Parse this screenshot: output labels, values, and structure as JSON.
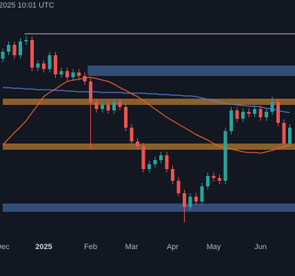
{
  "chart_data": {
    "type": "candlestick",
    "header_text": "2025 10:01 UTC",
    "categories": [
      "Dec",
      null,
      null,
      null,
      null,
      null,
      null,
      "2025",
      null,
      null,
      null,
      null,
      null,
      null,
      null,
      "Feb",
      null,
      null,
      null,
      null,
      null,
      null,
      "Mar",
      null,
      null,
      null,
      null,
      null,
      null,
      "Apr",
      null,
      null,
      null,
      null,
      null,
      null,
      "May",
      null,
      null,
      null,
      null,
      null,
      null,
      null,
      "Jun",
      null,
      null,
      null,
      null,
      null
    ],
    "open": [
      255,
      265,
      275,
      260,
      280,
      282,
      242,
      248,
      240,
      260,
      232,
      237,
      228,
      235,
      230,
      222,
      192,
      182,
      188,
      180,
      192,
      185,
      155,
      135,
      128,
      95,
      102,
      108,
      115,
      95,
      78,
      60,
      40,
      55,
      48,
      70,
      85,
      82,
      78,
      150,
      180,
      168,
      178,
      175,
      182,
      170,
      178,
      192,
      162,
      132
    ],
    "high": [
      270,
      280,
      280,
      285,
      288,
      287,
      253,
      253,
      265,
      265,
      242,
      242,
      240,
      240,
      235,
      227,
      197,
      193,
      193,
      197,
      197,
      190,
      160,
      140,
      133,
      107,
      113,
      120,
      120,
      100,
      83,
      65,
      60,
      60,
      75,
      90,
      90,
      87,
      155,
      185,
      185,
      183,
      183,
      187,
      187,
      183,
      200,
      197,
      167,
      160
    ],
    "low": [
      250,
      260,
      255,
      255,
      275,
      237,
      237,
      235,
      235,
      227,
      227,
      223,
      223,
      225,
      217,
      125,
      177,
      177,
      175,
      175,
      180,
      150,
      130,
      123,
      90,
      90,
      97,
      103,
      90,
      73,
      55,
      18,
      35,
      43,
      43,
      65,
      77,
      73,
      73,
      145,
      163,
      163,
      170,
      170,
      165,
      165,
      173,
      157,
      127,
      127
    ],
    "close": [
      265,
      275,
      260,
      280,
      282,
      242,
      248,
      240,
      260,
      232,
      237,
      228,
      235,
      230,
      222,
      192,
      182,
      188,
      180,
      192,
      185,
      155,
      135,
      128,
      95,
      102,
      108,
      115,
      95,
      78,
      60,
      40,
      55,
      48,
      70,
      85,
      82,
      78,
      150,
      180,
      168,
      178,
      175,
      182,
      170,
      178,
      192,
      162,
      132,
      155
    ],
    "up_color": "#26a69a",
    "down_color": "#ef5350",
    "series": [
      {
        "color": "#5b7fd6",
        "values": [
          213,
          213,
          212,
          212,
          211,
          211,
          210,
          210,
          210,
          209,
          209,
          208,
          208,
          207,
          207,
          207,
          207,
          206,
          206,
          206,
          206,
          205,
          205,
          205,
          205,
          204,
          204,
          203,
          203,
          202,
          202,
          201,
          201,
          200,
          198,
          196,
          194,
          192,
          190,
          189,
          188,
          187,
          186,
          186,
          185,
          183,
          182,
          180,
          178,
          177
        ]
      },
      {
        "color": "#f0622d",
        "values": [
          130,
          139,
          148,
          156,
          165,
          177,
          188,
          200,
          206,
          211,
          217,
          222,
          224,
          225,
          227,
          228,
          226,
          224,
          222,
          218,
          213,
          209,
          204,
          200,
          194,
          188,
          182,
          176,
          170,
          165,
          160,
          155,
          150,
          145,
          141,
          137,
          132,
          128,
          126,
          124,
          122,
          120,
          119,
          119,
          118,
          120,
          122,
          125,
          127,
          130
        ]
      }
    ],
    "zones": [
      {
        "low": 230,
        "high": 245,
        "start": 14.5,
        "color": "#3d5a8f"
      },
      {
        "low": 188,
        "high": 197,
        "start": 0,
        "color": "#a8732e"
      },
      {
        "low": 123,
        "high": 132,
        "start": 0,
        "color": "#a8732e"
      },
      {
        "low": 33,
        "high": 45,
        "start": 0,
        "color": "#3d5a8f"
      }
    ],
    "levels": [
      {
        "value": 291,
        "start": 3.7,
        "color": "#c8c8c8"
      }
    ],
    "ylim": [
      0,
      340
    ]
  }
}
